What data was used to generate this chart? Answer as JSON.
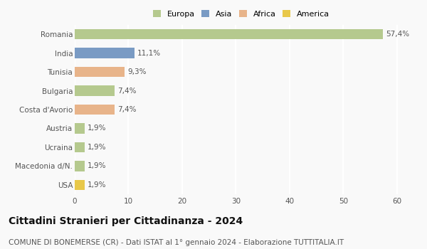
{
  "countries": [
    "Romania",
    "India",
    "Tunisia",
    "Bulgaria",
    "Costa d'Avorio",
    "Austria",
    "Ucraina",
    "Macedonia d/N.",
    "USA"
  ],
  "values": [
    57.4,
    11.1,
    9.3,
    7.4,
    7.4,
    1.9,
    1.9,
    1.9,
    1.9
  ],
  "labels": [
    "57,4%",
    "11,1%",
    "9,3%",
    "7,4%",
    "7,4%",
    "1,9%",
    "1,9%",
    "1,9%",
    "1,9%"
  ],
  "colors": [
    "#b5c98e",
    "#7a9bc4",
    "#e8b48a",
    "#b5c98e",
    "#e8b48a",
    "#b5c98e",
    "#b5c98e",
    "#b5c98e",
    "#e8c84a"
  ],
  "legend_labels": [
    "Europa",
    "Asia",
    "Africa",
    "America"
  ],
  "legend_colors": [
    "#b5c98e",
    "#7a9bc4",
    "#e8b48a",
    "#e8c84a"
  ],
  "xlim": [
    0,
    62
  ],
  "xticks": [
    0,
    10,
    20,
    30,
    40,
    50,
    60
  ],
  "title": "Cittadini Stranieri per Cittadinanza - 2024",
  "subtitle": "COMUNE DI BONEMERSE (CR) - Dati ISTAT al 1° gennaio 2024 - Elaborazione TUTTITALIA.IT",
  "title_fontsize": 10,
  "subtitle_fontsize": 7.5,
  "label_fontsize": 7.5,
  "tick_fontsize": 7.5,
  "legend_fontsize": 8,
  "bg_color": "#f9f9f9",
  "grid_color": "#ffffff",
  "bar_height": 0.55
}
